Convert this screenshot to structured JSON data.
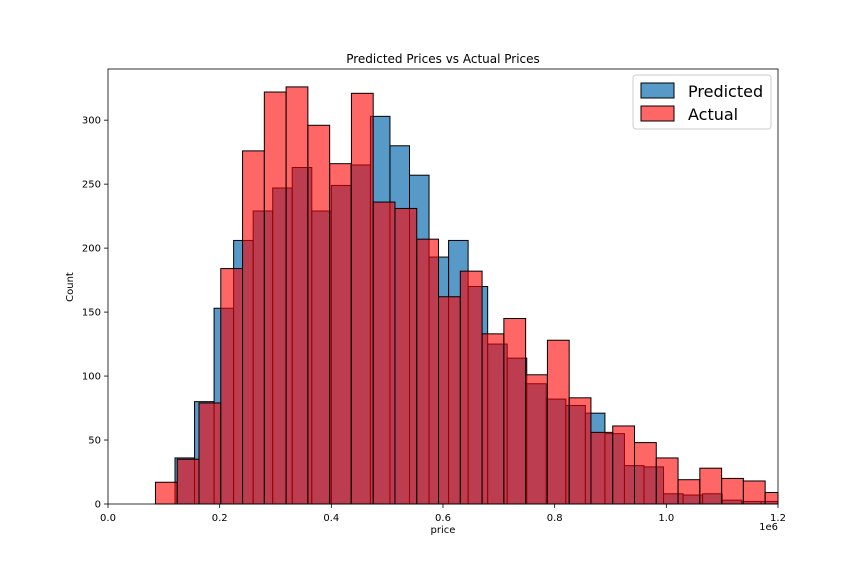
{
  "chart_data": {
    "type": "bar",
    "title": "Predicted Prices vs Actual Prices",
    "xlabel": "price",
    "ylabel": "Count",
    "x_offset_label": "1e6",
    "xlim": [
      0,
      1.2
    ],
    "ylim": [
      0,
      340
    ],
    "xticks": [
      0.0,
      0.2,
      0.4,
      0.6,
      0.8,
      1.0,
      1.2
    ],
    "xtick_labels": [
      "0.0",
      "0.2",
      "0.4",
      "0.6",
      "0.8",
      "1.0",
      "1.2"
    ],
    "yticks": [
      0,
      50,
      100,
      150,
      200,
      250,
      300
    ],
    "ytick_labels": [
      "0",
      "50",
      "100",
      "150",
      "200",
      "250",
      "300"
    ],
    "grid": false,
    "legend_position": "top-right",
    "series": [
      {
        "name": "Predicted",
        "color": "#1f77b4",
        "opacity": 0.75,
        "bins": [
          [
            0.12,
            0.155,
            36
          ],
          [
            0.155,
            0.19,
            80
          ],
          [
            0.19,
            0.225,
            153
          ],
          [
            0.225,
            0.26,
            206
          ],
          [
            0.26,
            0.295,
            229
          ],
          [
            0.295,
            0.33,
            247
          ],
          [
            0.33,
            0.365,
            263
          ],
          [
            0.365,
            0.4,
            229
          ],
          [
            0.4,
            0.435,
            249
          ],
          [
            0.435,
            0.47,
            265
          ],
          [
            0.47,
            0.505,
            303
          ],
          [
            0.505,
            0.54,
            280
          ],
          [
            0.54,
            0.575,
            257
          ],
          [
            0.575,
            0.61,
            193
          ],
          [
            0.61,
            0.645,
            206
          ],
          [
            0.645,
            0.68,
            170
          ],
          [
            0.68,
            0.715,
            125
          ],
          [
            0.715,
            0.75,
            114
          ],
          [
            0.75,
            0.785,
            94
          ],
          [
            0.785,
            0.82,
            82
          ],
          [
            0.82,
            0.855,
            77
          ],
          [
            0.855,
            0.89,
            71
          ],
          [
            0.89,
            0.925,
            55
          ],
          [
            0.925,
            0.96,
            30
          ],
          [
            0.96,
            0.995,
            29
          ],
          [
            0.995,
            1.03,
            8
          ],
          [
            1.03,
            1.065,
            7
          ],
          [
            1.065,
            1.1,
            8
          ],
          [
            1.1,
            1.135,
            3
          ],
          [
            1.135,
            1.17,
            2
          ],
          [
            1.17,
            1.2,
            2
          ]
        ]
      },
      {
        "name": "Actual",
        "color": "#ff0000",
        "opacity": 0.6,
        "bins": [
          [
            0.085,
            0.124,
            17
          ],
          [
            0.124,
            0.163,
            35
          ],
          [
            0.163,
            0.202,
            79
          ],
          [
            0.202,
            0.241,
            184
          ],
          [
            0.241,
            0.28,
            276
          ],
          [
            0.28,
            0.319,
            322
          ],
          [
            0.319,
            0.358,
            326
          ],
          [
            0.358,
            0.397,
            296
          ],
          [
            0.397,
            0.436,
            266
          ],
          [
            0.436,
            0.475,
            321
          ],
          [
            0.475,
            0.514,
            236
          ],
          [
            0.514,
            0.553,
            231
          ],
          [
            0.553,
            0.592,
            207
          ],
          [
            0.592,
            0.631,
            162
          ],
          [
            0.631,
            0.67,
            182
          ],
          [
            0.67,
            0.709,
            133
          ],
          [
            0.709,
            0.748,
            145
          ],
          [
            0.748,
            0.787,
            101
          ],
          [
            0.787,
            0.826,
            128
          ],
          [
            0.826,
            0.865,
            83
          ],
          [
            0.865,
            0.904,
            56
          ],
          [
            0.904,
            0.943,
            61
          ],
          [
            0.943,
            0.982,
            48
          ],
          [
            0.982,
            1.021,
            36
          ],
          [
            1.021,
            1.06,
            19
          ],
          [
            1.06,
            1.099,
            28
          ],
          [
            1.099,
            1.138,
            20
          ],
          [
            1.138,
            1.177,
            18
          ],
          [
            1.177,
            1.2,
            9
          ]
        ]
      }
    ]
  }
}
